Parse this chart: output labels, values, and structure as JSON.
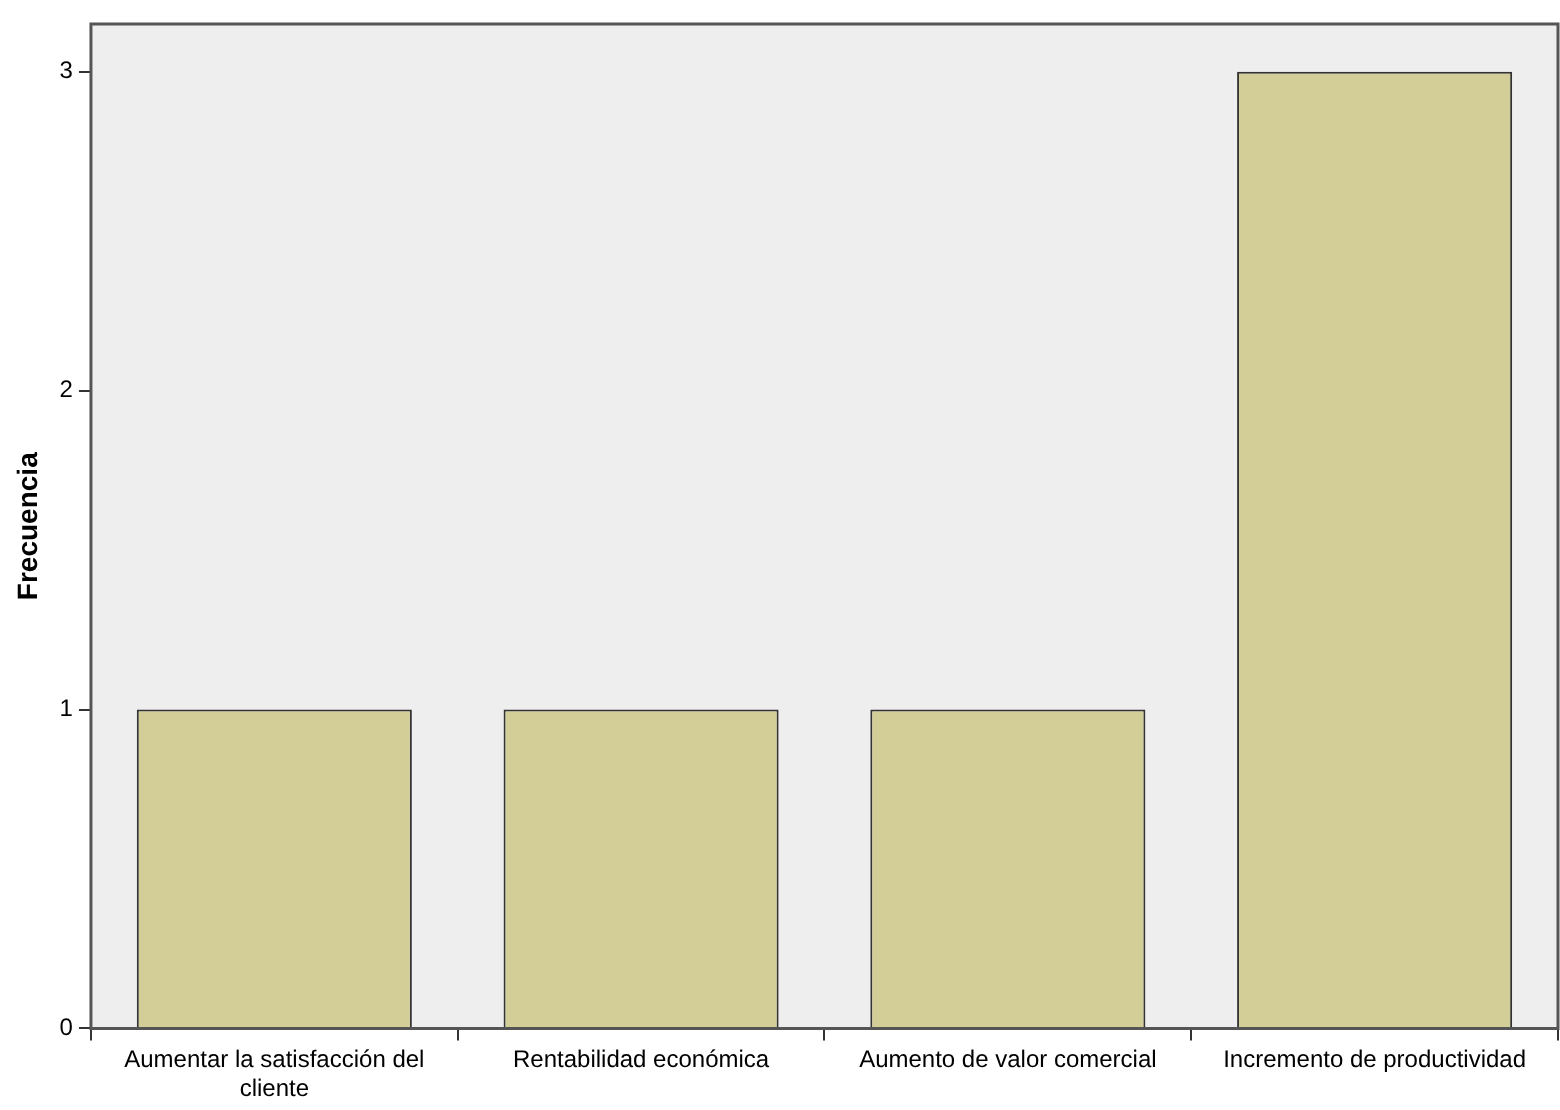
{
  "chart_data": {
    "type": "bar",
    "ylabel": "Frecuencia",
    "categories": [
      "Aumentar la satisfacción del cliente",
      "Rentabilidad económica",
      "Aumento de valor comercial",
      "Incremento de productividad"
    ],
    "values": [
      1,
      1,
      1,
      3
    ],
    "color": "#d3cd97",
    "ylim": [
      0,
      3.15
    ],
    "yticks": [
      0,
      1,
      2,
      3
    ],
    "grid": false,
    "legend": false
  }
}
